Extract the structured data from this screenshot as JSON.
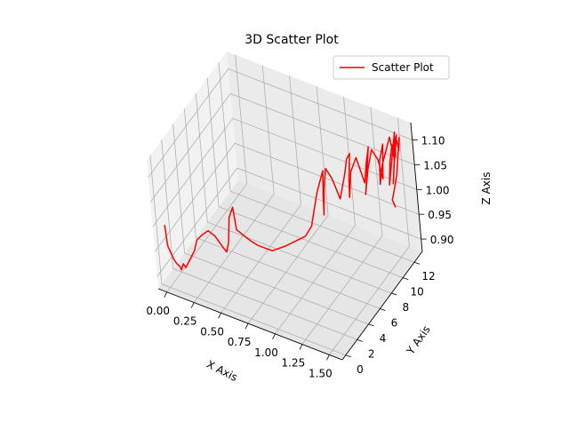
{
  "chart_data": {
    "type": "line",
    "title": "3D Scatter Plot",
    "xlabel": "X Axis",
    "ylabel": "Y Axis",
    "zlabel": "Z Axis",
    "xlim": [
      -0.08,
      1.62
    ],
    "ylim": [
      -0.6,
      13.4
    ],
    "zlim": [
      0.875,
      1.135
    ],
    "xticks": [
      "0.00",
      "0.25",
      "0.50",
      "0.75",
      "1.00",
      "1.25",
      "1.50"
    ],
    "yticks": [
      "0",
      "2",
      "4",
      "6",
      "8",
      "10",
      "12"
    ],
    "zticks": [
      "0.90",
      "0.95",
      "1.00",
      "1.05",
      "1.10"
    ],
    "grid": true,
    "legend": {
      "placement": "top-right",
      "entries": [
        {
          "label": "Scatter Plot",
          "color": "#ff0000"
        }
      ]
    },
    "series": [
      {
        "name": "Scatter Plot",
        "color": "#ff0000",
        "x": [
          0.0,
          0.01,
          0.02,
          0.03,
          0.04,
          0.05,
          0.06,
          0.06,
          0.07,
          0.08,
          0.1,
          0.12,
          0.14,
          0.16,
          0.2,
          0.25,
          0.3,
          0.35,
          0.38,
          0.4,
          0.42,
          0.45,
          0.45,
          0.5,
          0.55,
          0.6,
          0.7,
          0.8,
          0.88,
          0.95,
          1.0,
          1.02,
          1.04,
          1.06,
          1.08,
          1.05,
          1.03,
          1.04,
          1.06,
          1.1,
          1.15,
          1.2,
          1.22,
          1.24,
          1.2,
          1.18,
          1.2,
          1.25,
          1.3,
          1.32,
          1.34,
          1.28,
          1.25,
          1.28,
          1.32,
          1.36,
          1.38,
          1.4,
          1.35,
          1.33,
          1.36,
          1.4,
          1.44,
          1.46,
          1.48,
          1.42,
          1.4,
          1.43,
          1.47,
          1.5,
          1.52,
          1.54,
          1.5,
          1.48,
          1.52,
          1.56,
          1.58,
          1.6,
          1.55,
          1.52,
          1.5,
          1.53
        ],
        "y": [
          0.0,
          0.0,
          0.1,
          0.2,
          0.3,
          0.5,
          0.8,
          1.0,
          1.2,
          1.4,
          1.6,
          1.8,
          2.0,
          2.2,
          2.4,
          2.6,
          2.8,
          3.0,
          3.1,
          3.2,
          3.3,
          3.5,
          3.8,
          4.0,
          4.2,
          4.5,
          5.0,
          5.5,
          6.0,
          6.3,
          6.6,
          6.9,
          7.2,
          7.5,
          7.8,
          8.0,
          8.2,
          8.4,
          8.6,
          8.8,
          9.0,
          9.2,
          9.4,
          9.6,
          9.8,
          10.0,
          10.2,
          10.4,
          10.6,
          10.8,
          11.0,
          11.2,
          11.4,
          11.6,
          11.8,
          12.0,
          12.2,
          12.3,
          12.4,
          12.5,
          12.6,
          12.7,
          12.8,
          12.9,
          13.0,
          12.9,
          12.8,
          12.7,
          12.6,
          12.5,
          12.4,
          12.3,
          12.2,
          12.1,
          12.0,
          11.9,
          11.8,
          11.7,
          11.6,
          11.5,
          11.4,
          11.3
        ],
        "z": [
          1.0,
          0.96,
          0.95,
          0.94,
          0.93,
          0.92,
          0.91,
          0.9,
          0.91,
          0.9,
          0.91,
          0.92,
          0.93,
          0.95,
          0.96,
          0.97,
          0.96,
          0.94,
          0.93,
          0.95,
          1.0,
          1.02,
          0.97,
          0.96,
          0.95,
          0.94,
          0.93,
          0.94,
          0.95,
          0.96,
          0.98,
          1.01,
          1.04,
          1.06,
          1.08,
          1.02,
          0.98,
          1.03,
          1.07,
          1.05,
          1.01,
          1.06,
          1.09,
          1.1,
          1.04,
          1.0,
          1.05,
          1.08,
          1.03,
          1.07,
          1.1,
          1.02,
          0.99,
          1.04,
          1.08,
          1.06,
          1.02,
          1.09,
          1.05,
          1.0,
          1.04,
          1.07,
          1.1,
          1.06,
          1.11,
          1.03,
          1.0,
          1.05,
          1.09,
          1.07,
          1.11,
          1.12,
          1.06,
          1.02,
          1.08,
          1.12,
          1.1,
          1.13,
          1.05,
          1.02,
          1.0,
          0.99
        ]
      }
    ]
  }
}
